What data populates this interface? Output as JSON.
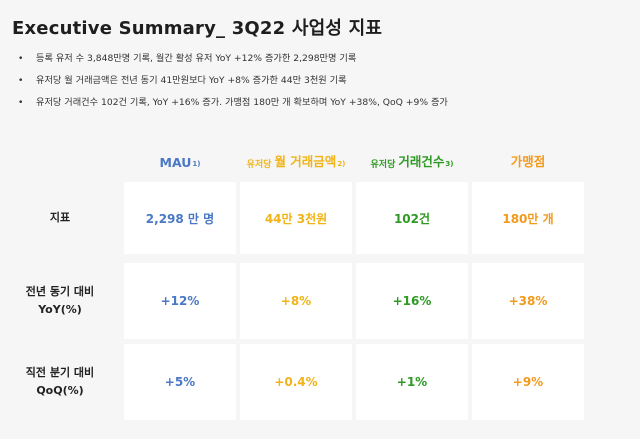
{
  "title": "Executive Summary_ 3Q22 사업성 지표",
  "bullets": [
    "등록 유저 수 3,848만명 기록, 월간 활성 유저 YoY +12% 증가한 2,298만명 기록",
    "유저당 월 거래금액은 전년 동기 41만원보다 YoY +8% 증가한 44만 3천원 기록",
    "유저당 거래건수 102건 기록, YoY +16% 증가. 가맹점 180만 개 확보하며 YoY +38%, QoQ +9% 증가"
  ],
  "columns": [
    {
      "prefix": "",
      "label": "MAU",
      "sup": "1)",
      "color": "#4a78c4"
    },
    {
      "prefix": "유저당",
      "label": "월 거래금액",
      "sup": "2)",
      "color": "#f0b418"
    },
    {
      "prefix": "유저당",
      "label": "거래건수",
      "sup": "3)",
      "color": "#2e9a23"
    },
    {
      "prefix": "",
      "label": "가맹점",
      "sup": "",
      "color": "#f39a1c"
    }
  ],
  "rows": [
    {
      "label_line1": "지표",
      "label_line2": "",
      "values": [
        "2,298 만 명",
        "44만 3천원",
        "102건",
        "180만 개"
      ]
    },
    {
      "label_line1": "전년 동기 대비",
      "label_line2": "YoY(%)",
      "values": [
        "+12%",
        "+8%",
        "+16%",
        "+38%"
      ]
    },
    {
      "label_line1": "직전 분기 대비",
      "label_line2": "QoQ(%)",
      "values": [
        "+5%",
        "+0.4%",
        "+1%",
        "+9%"
      ]
    }
  ]
}
